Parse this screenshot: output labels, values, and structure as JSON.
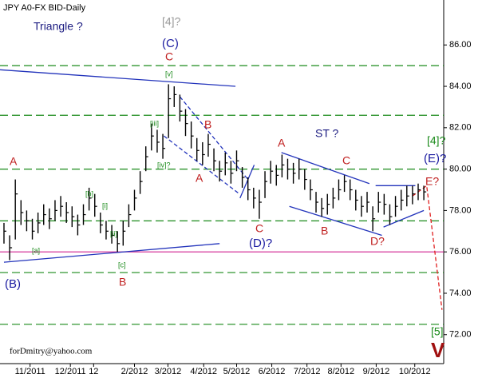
{
  "chart_data": {
    "type": "ohlc",
    "title": "JPY A0-FX BID-Daily",
    "footer": "forDmitry@yahoo.com",
    "color": "#000000",
    "xlim": [
      -0.7,
      77.5
    ],
    "ylim": [
      70.6,
      87.4
    ],
    "yticks": [
      {
        "value": 72,
        "label": "72.00"
      },
      {
        "value": 74,
        "label": "74.00"
      },
      {
        "value": 76,
        "label": "76.00"
      },
      {
        "value": 78,
        "label": "78.00"
      },
      {
        "value": 80,
        "label": "80.00"
      },
      {
        "value": 82,
        "label": "82.00"
      },
      {
        "value": 84,
        "label": "84.00"
      },
      {
        "value": 86,
        "label": "86.00"
      }
    ],
    "xticks": [
      {
        "value": 4.6,
        "label": "11/2011"
      },
      {
        "value": 11.7,
        "label": "12/2011"
      },
      {
        "value": 15.8,
        "label": "12"
      },
      {
        "value": 23,
        "label": "2/2012"
      },
      {
        "value": 28.9,
        "label": "3/2012"
      },
      {
        "value": 35.2,
        "label": "4/2012"
      },
      {
        "value": 41,
        "label": "5/2012"
      },
      {
        "value": 47.2,
        "label": "6/2012"
      },
      {
        "value": 53.4,
        "label": "7/2012"
      },
      {
        "value": 59.4,
        "label": "8/2012"
      },
      {
        "value": 65.6,
        "label": "9/2012"
      },
      {
        "value": 72.4,
        "label": "10/2012"
      }
    ],
    "high": [
      77.4,
      76.8,
      79.5,
      78.5,
      78.0,
      77.6,
      77.9,
      78.3,
      78.1,
      78.5,
      78.7,
      78.4,
      78.2,
      77.8,
      78.3,
      79.1,
      78.8,
      77.9,
      77.5,
      77.3,
      77.0,
      77.5,
      78.3,
      79.0,
      79.9,
      81.1,
      82.2,
      81.9,
      81.7,
      84.1,
      84.0,
      83.6,
      82.9,
      82.3,
      81.5,
      81.3,
      81.7,
      81.0,
      80.4,
      80.8,
      80.4,
      80.9,
      80.1,
      79.6,
      79.1,
      79.0,
      79.9,
      80.4,
      80.2,
      80.7,
      80.5,
      80.3,
      80.5,
      80.0,
      79.5,
      78.9,
      78.6,
      78.8,
      79.1,
      79.5,
      79.7,
      79.5,
      79.0,
      78.7,
      78.9,
      78.2,
      78.9,
      78.8,
      78.3,
      78.7,
      79.0,
      79.2,
      79.2,
      79.3,
      79.2
    ],
    "low": [
      76.4,
      75.6,
      76.6,
      77.3,
      77.0,
      76.6,
      76.9,
      77.3,
      77.1,
      77.5,
      77.7,
      77.4,
      77.2,
      76.8,
      77.3,
      78.0,
      77.7,
      76.9,
      76.6,
      76.4,
      76.0,
      76.3,
      77.2,
      78.0,
      78.8,
      79.9,
      80.9,
      80.8,
      80.5,
      81.5,
      83.0,
      82.3,
      81.6,
      81.0,
      80.4,
      80.2,
      80.6,
      79.9,
      79.4,
      79.7,
      79.3,
      79.9,
      79.1,
      78.5,
      78.1,
      77.6,
      78.6,
      79.3,
      79.2,
      79.6,
      79.5,
      79.3,
      79.5,
      79.0,
      78.5,
      77.9,
      77.7,
      77.8,
      78.1,
      78.5,
      78.9,
      78.5,
      78.0,
      77.7,
      77.9,
      77.0,
      77.9,
      77.8,
      77.3,
      77.7,
      78.0,
      78.2,
      78.3,
      78.5,
      78.5
    ],
    "close": [
      77.0,
      76.2,
      78.8,
      77.9,
      77.5,
      77.0,
      77.4,
      77.8,
      77.6,
      78.0,
      78.2,
      77.9,
      77.7,
      77.3,
      77.8,
      78.6,
      78.2,
      77.3,
      77.0,
      76.8,
      76.4,
      77.0,
      77.8,
      78.6,
      79.4,
      80.6,
      81.6,
      81.3,
      81.0,
      83.4,
      83.6,
      82.8,
      82.2,
      81.6,
      80.9,
      80.7,
      81.2,
      80.4,
      79.9,
      80.3,
      79.8,
      80.4,
      79.6,
      79.0,
      78.6,
      78.4,
      79.4,
      79.9,
      79.7,
      80.2,
      80.0,
      79.8,
      80.0,
      79.5,
      79.0,
      78.4,
      78.1,
      78.3,
      78.6,
      79.0,
      79.4,
      79.0,
      78.5,
      78.2,
      78.4,
      77.6,
      78.4,
      78.3,
      77.7,
      78.2,
      78.5,
      78.7,
      78.8,
      79.0,
      78.9
    ],
    "levels": [
      {
        "value": 85.0,
        "color": "#1a8a1a"
      },
      {
        "value": 82.6,
        "color": "#1a8a1a"
      },
      {
        "value": 80.0,
        "color": "#1a8a1a"
      },
      {
        "value": 77.5,
        "color": "#1a8a1a"
      },
      {
        "value": 75.0,
        "color": "#1a8a1a"
      },
      {
        "value": 72.5,
        "color": "#1a8a1a"
      },
      {
        "value": 76.0,
        "color": "#d02090"
      }
    ],
    "trendlines": [
      {
        "color": "#2233bb",
        "dashed": false,
        "x": [
          -0.7,
          40.8
        ],
        "y": [
          84.8,
          84.0
        ]
      },
      {
        "color": "#2233bb",
        "dashed": false,
        "x": [
          0,
          38
        ],
        "y": [
          75.5,
          76.4
        ]
      },
      {
        "color": "#2233bb",
        "dashed": true,
        "x": [
          31,
          43
        ],
        "y": [
          83.5,
          79.5
        ]
      },
      {
        "color": "#2233bb",
        "dashed": true,
        "x": [
          28.2,
          41.5
        ],
        "y": [
          81.6,
          78.8
        ]
      },
      {
        "color": "#2233bb",
        "dashed": false,
        "x": [
          41.6,
          44.1
        ],
        "y": [
          78.6,
          80.2
        ]
      },
      {
        "color": "#2233bb",
        "dashed": false,
        "x": [
          48.9,
          64.4
        ],
        "y": [
          80.8,
          79.3
        ]
      },
      {
        "color": "#2233bb",
        "dashed": false,
        "x": [
          50.3,
          66.6
        ],
        "y": [
          78.2,
          76.8
        ]
      },
      {
        "color": "#2233bb",
        "dashed": false,
        "x": [
          65.5,
          72.5
        ],
        "y": [
          79.2,
          79.2
        ]
      },
      {
        "color": "#2233bb",
        "dashed": false,
        "x": [
          66.9,
          74
        ],
        "y": [
          77.2,
          78.0
        ]
      },
      {
        "color": "#e02020",
        "dashed": true,
        "x": [
          72,
          74.5,
          77.2
        ],
        "y": [
          78.7,
          79.2,
          73.2
        ]
      }
    ],
    "annotations": [
      {
        "text": "Triangle ?",
        "color": "#1a1a80"
      },
      {
        "text": "[4]?",
        "color": "#999999"
      },
      {
        "text": "(C)",
        "color": "#1a1aa0"
      },
      {
        "text": "C",
        "color": "#c02020"
      },
      {
        "text": "[v]",
        "color": "#1a8a1a"
      },
      {
        "text": "[iii]",
        "color": "#1a8a1a"
      },
      {
        "text": "[iv]?",
        "color": "#1a8a1a"
      },
      {
        "text": "B",
        "color": "#c02020"
      },
      {
        "text": "A",
        "color": "#c02020"
      },
      {
        "text": "ST ?",
        "color": "#1a1a80"
      },
      {
        "text": "A",
        "color": "#c02020"
      },
      {
        "text": "C",
        "color": "#c02020"
      },
      {
        "text": "B",
        "color": "#c02020"
      },
      {
        "text": "D?",
        "color": "#c02020"
      },
      {
        "text": "E?",
        "color": "#c02020"
      },
      {
        "text": "[4]?",
        "color": "#1a8a1a"
      },
      {
        "text": "(E)?",
        "color": "#1a1aa0"
      },
      {
        "text": "C",
        "color": "#c02020"
      },
      {
        "text": "(D)?",
        "color": "#1a1aa0"
      },
      {
        "text": "A",
        "color": "#c02020"
      },
      {
        "text": "(B)",
        "color": "#1a1aa0"
      },
      {
        "text": "[a]",
        "color": "#1a8a1a"
      },
      {
        "text": "[b]",
        "color": "#1a8a1a"
      },
      {
        "text": "[i]",
        "color": "#1a8a1a"
      },
      {
        "text": "[ii]",
        "color": "#1a8a1a"
      },
      {
        "text": "[c]",
        "color": "#1a8a1a"
      },
      {
        "text": "B",
        "color": "#c02020"
      },
      {
        "text": "[5]",
        "color": "#1a8a1a"
      },
      {
        "text": "V",
        "color": "#a01010"
      }
    ]
  }
}
